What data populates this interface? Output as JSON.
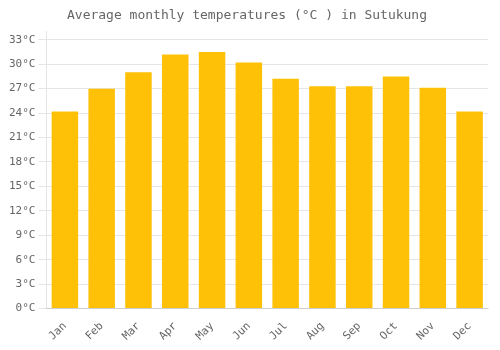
{
  "chart_data": {
    "type": "bar",
    "title": "Average monthly temperatures (°C ) in Sutukung",
    "categories": [
      "Jan",
      "Feb",
      "Mar",
      "Apr",
      "May",
      "Jun",
      "Jul",
      "Aug",
      "Sep",
      "Oct",
      "Nov",
      "Dec"
    ],
    "values": [
      24.2,
      27.0,
      29.0,
      31.2,
      31.5,
      30.2,
      28.2,
      27.3,
      27.3,
      28.5,
      27.1,
      24.2
    ],
    "color": "#FFC107",
    "ylim": [
      0,
      34
    ],
    "yticks": [
      {
        "value": 0,
        "label": "0°C"
      },
      {
        "value": 3,
        "label": "3°C"
      },
      {
        "value": 6,
        "label": "6°C"
      },
      {
        "value": 9,
        "label": "9°C"
      },
      {
        "value": 12,
        "label": "12°C"
      },
      {
        "value": 15,
        "label": "15°C"
      },
      {
        "value": 18,
        "label": "18°C"
      },
      {
        "value": 21,
        "label": "21°C"
      },
      {
        "value": 24,
        "label": "24°C"
      },
      {
        "value": 27,
        "label": "27°C"
      },
      {
        "value": 30,
        "label": "30°C"
      },
      {
        "value": 33,
        "label": "33°C"
      }
    ],
    "grid": "y"
  }
}
